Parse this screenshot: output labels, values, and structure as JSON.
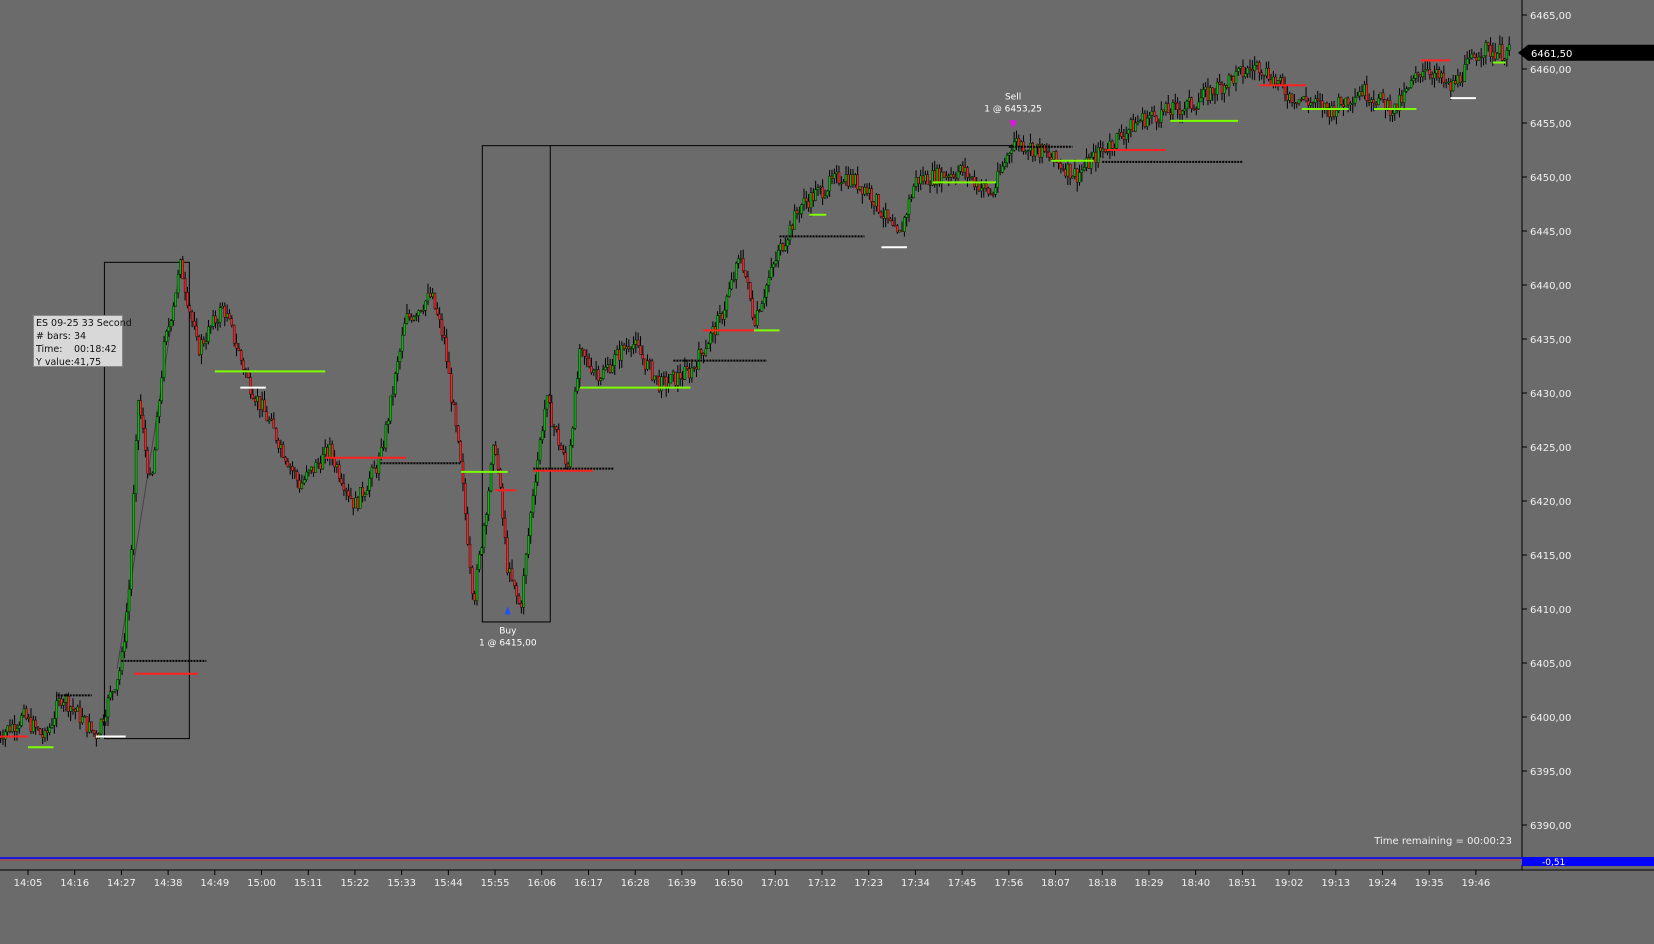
{
  "chart_data": {
    "type": "candlestick",
    "instrument": "ES 09-25",
    "period": "33 Second",
    "ylim": [
      6388,
      6466
    ],
    "y_ticks": [
      "6465,00",
      "6460,00",
      "6455,00",
      "6450,00",
      "6445,00",
      "6440,00",
      "6435,00",
      "6430,00",
      "6425,00",
      "6420,00",
      "6415,00",
      "6410,00",
      "6405,00",
      "6400,00",
      "6395,00",
      "6390,00"
    ],
    "x_ticks": [
      "14:05",
      "14:16",
      "14:27",
      "14:38",
      "14:49",
      "15:00",
      "15:11",
      "15:22",
      "15:33",
      "15:44",
      "15:55",
      "16:06",
      "16:17",
      "16:28",
      "16:39",
      "16:50",
      "17:01",
      "17:12",
      "17:23",
      "17:34",
      "17:45",
      "17:56",
      "18:07",
      "18:18",
      "18:29",
      "18:40",
      "18:51",
      "19:02",
      "19:13",
      "19:24",
      "19:35",
      "19:46"
    ],
    "price_path": [
      [
        "13:58",
        6398.3
      ],
      [
        "14:04",
        6400.0
      ],
      [
        "14:09",
        6398.0
      ],
      [
        "14:13",
        6402.0
      ],
      [
        "14:21",
        6398.3
      ],
      [
        "14:27",
        6404.8
      ],
      [
        "14:29",
        6412.7
      ],
      [
        "14:31",
        6429.4
      ],
      [
        "14:34",
        6421.0
      ],
      [
        "14:37",
        6434.0
      ],
      [
        "14:41",
        6441.9
      ],
      [
        "14:45",
        6434.0
      ],
      [
        "14:51",
        6438.0
      ],
      [
        "14:57",
        6431.0
      ],
      [
        "15:04",
        6425.6
      ],
      [
        "15:09",
        6421.5
      ],
      [
        "15:16",
        6424.7
      ],
      [
        "15:22",
        6419.6
      ],
      [
        "15:28",
        6423.8
      ],
      [
        "15:34",
        6436.8
      ],
      [
        "15:40",
        6439.0
      ],
      [
        "15:43",
        6434.9
      ],
      [
        "15:47",
        6422.9
      ],
      [
        "15:50",
        6410.8
      ],
      [
        "15:55",
        6425.6
      ],
      [
        "15:58",
        6413.6
      ],
      [
        "16:01",
        6410.0
      ],
      [
        "16:04",
        6421.0
      ],
      [
        "16:07",
        6429.4
      ],
      [
        "16:12",
        6422.9
      ],
      [
        "16:15",
        6433.5
      ],
      [
        "16:20",
        6431.7
      ],
      [
        "16:27",
        6434.9
      ],
      [
        "16:34",
        6430.7
      ],
      [
        "16:41",
        6432.0
      ],
      [
        "16:48",
        6436.8
      ],
      [
        "16:53",
        6442.8
      ],
      [
        "16:56",
        6436.8
      ],
      [
        "17:02",
        6443.2
      ],
      [
        "17:07",
        6447.4
      ],
      [
        "17:17",
        6450.2
      ],
      [
        "17:23",
        6448.8
      ],
      [
        "17:30",
        6444.2
      ],
      [
        "17:34",
        6449.7
      ],
      [
        "17:45",
        6450.6
      ],
      [
        "17:52",
        6448.3
      ],
      [
        "17:57",
        6453.4
      ],
      [
        "18:03",
        6452.5
      ],
      [
        "18:12",
        6450.2
      ],
      [
        "18:18",
        6452.5
      ],
      [
        "18:27",
        6455.3
      ],
      [
        "18:39",
        6456.7
      ],
      [
        "18:48",
        6459.0
      ],
      [
        "18:55",
        6460.4
      ],
      [
        "19:02",
        6457.6
      ],
      [
        "19:12",
        6456.2
      ],
      [
        "19:19",
        6458.1
      ],
      [
        "19:27",
        6456.2
      ],
      [
        "19:34",
        6460.4
      ],
      [
        "19:40",
        6458.1
      ],
      [
        "19:47",
        6461.8
      ],
      [
        "19:54",
        6461.5
      ]
    ],
    "levels": [
      [
        "13:58",
        "14:05",
        6398.2,
        "#ff2020"
      ],
      [
        "14:05",
        "14:11",
        6397.2,
        "#7cfc00"
      ],
      [
        "14:12",
        "14:20",
        6402.0,
        "#000000"
      ],
      [
        "14:21",
        "14:28",
        6398.2,
        "#ffffff"
      ],
      [
        "14:27",
        "14:47",
        6405.2,
        "#000000"
      ],
      [
        "14:30",
        "14:45",
        6404.0,
        "#ff2020"
      ],
      [
        "14:49",
        "15:15",
        6432.0,
        "#7cfc00"
      ],
      [
        "14:55",
        "15:01",
        6430.5,
        "#ffffff"
      ],
      [
        "15:15",
        "15:34",
        6424.0,
        "#ff2020"
      ],
      [
        "15:28",
        "15:47",
        6423.5,
        "#000000"
      ],
      [
        "15:47",
        "15:58",
        6422.7,
        "#7cfc00"
      ],
      [
        "15:55",
        "16:00",
        6421.0,
        "#ff2020"
      ],
      [
        "16:04",
        "16:23",
        6423.0,
        "#000000"
      ],
      [
        "16:04",
        "16:18",
        6422.8,
        "#ff2020"
      ],
      [
        "16:15",
        "16:41",
        6430.5,
        "#7cfc00"
      ],
      [
        "16:37",
        "16:59",
        6433.0,
        "#000000"
      ],
      [
        "16:44",
        "16:56",
        6435.8,
        "#ff2020"
      ],
      [
        "16:56",
        "17:02",
        6435.8,
        "#7cfc00"
      ],
      [
        "17:02",
        "17:22",
        6444.5,
        "#000000"
      ],
      [
        "17:09",
        "17:13",
        6446.5,
        "#7cfc00"
      ],
      [
        "17:26",
        "17:32",
        6443.5,
        "#ffffff"
      ],
      [
        "17:38",
        "17:53",
        6449.5,
        "#7cfc00"
      ],
      [
        "17:56",
        "18:11",
        6452.8,
        "#000000"
      ],
      [
        "18:06",
        "18:16",
        6451.5,
        "#7cfc00"
      ],
      [
        "18:19",
        "18:33",
        6452.5,
        "#ff2020"
      ],
      [
        "18:18",
        "18:51",
        6451.4,
        "#000000"
      ],
      [
        "18:34",
        "18:50",
        6455.2,
        "#7cfc00"
      ],
      [
        "18:55",
        "19:06",
        6458.5,
        "#ff2020"
      ],
      [
        "19:05",
        "19:16",
        6456.3,
        "#7cfc00"
      ],
      [
        "19:22",
        "19:32",
        6456.3,
        "#7cfc00"
      ],
      [
        "19:33",
        "19:40",
        6460.8,
        "#ff2020"
      ],
      [
        "19:40",
        "19:46",
        6457.3,
        "#ffffff"
      ],
      [
        "19:50",
        "19:53",
        6460.6,
        "#7cfc00"
      ]
    ],
    "boxes": [
      {
        "from": "14:23",
        "to": "14:43",
        "high": 6442.1,
        "low": 6398.0
      },
      {
        "from": "15:52",
        "to": "16:08",
        "high": 6452.9,
        "low": 6408.8
      }
    ],
    "box_extension": {
      "from": "16:08",
      "to": "17:57",
      "price": 6452.9
    },
    "diagonal": {
      "from": [
        "14:26",
        6404.5
      ],
      "to": [
        "14:41",
        6441.9
      ]
    },
    "trades": [
      {
        "label": "Buy",
        "detail": "1 @ 6415,00",
        "time": "15:58",
        "price": 6409.5,
        "color": "#1e50ff"
      },
      {
        "label": "Sell",
        "detail": "1 @ 6453,25",
        "time": "17:57",
        "price": 6454.5,
        "color": "#ff00ff"
      }
    ],
    "last_price": "6461,50",
    "indicator_value": "-0,51",
    "colors": {
      "up": "#00c000",
      "down": "#ff2020",
      "wick": "#000000",
      "background": "#6b6b6b",
      "indicator": "#0000ff"
    }
  },
  "tooltip": {
    "title": "ES 09-25 33 Second",
    "bars_label": "# bars:",
    "bars": "34",
    "time_label": "Time:",
    "time": "00:18:42",
    "y_label": "Y value:",
    "y": "41,75"
  },
  "time_remaining": "Time remaining = 00:00:23"
}
